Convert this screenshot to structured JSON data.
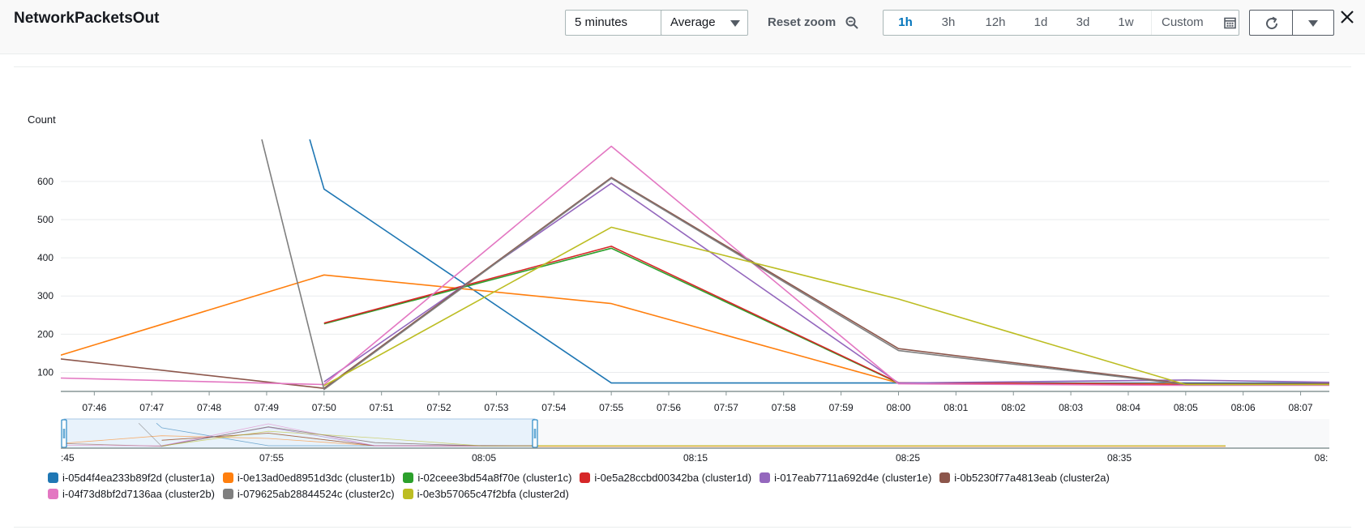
{
  "header": {
    "title": "NetworkPacketsOut",
    "period_label": "5 minutes",
    "stat_label": "Average",
    "reset_zoom_label": "Reset zoom",
    "ranges": [
      "1h",
      "3h",
      "12h",
      "1d",
      "3d",
      "1w"
    ],
    "active_range": "1h",
    "custom_label": "Custom",
    "icons": {
      "period_caret": "caret-down-icon",
      "stat_caret": "caret-down-icon",
      "zoom": "zoom-out-icon",
      "calendar": "calendar-icon",
      "refresh": "refresh-icon",
      "refresh_options": "caret-down-icon",
      "close": "close-icon"
    }
  },
  "chart_data": {
    "type": "line",
    "title": "",
    "ylabel": "Count",
    "xlabel": "",
    "ylim": [
      50,
      710
    ],
    "yticks": [
      100,
      200,
      300,
      400,
      500,
      600
    ],
    "xticks": [
      "07:46",
      "07:47",
      "07:48",
      "07:49",
      "07:50",
      "07:51",
      "07:52",
      "07:53",
      "07:54",
      "07:55",
      "07:56",
      "07:57",
      "07:58",
      "07:59",
      "08:00",
      "08:01",
      "08:02",
      "08:03",
      "08:04",
      "08:05",
      "08:06",
      "08:07"
    ],
    "xlim": [
      "07:45:25",
      "08:07:30"
    ],
    "grid": true,
    "legend_position": "bottom",
    "series": [
      {
        "name": "i-05d4f4ea233b89f2d (cluster1a)",
        "color": "#1f77b4",
        "points": [
          [
            "07:49:45",
            710
          ],
          [
            "07:50",
            580
          ],
          [
            "07:55",
            72
          ],
          [
            "08:00",
            72
          ],
          [
            "08:05",
            72
          ],
          [
            "08:07:30",
            72
          ]
        ]
      },
      {
        "name": "i-0e13ad0ed8951d3dc (cluster1b)",
        "color": "#ff7f0e",
        "points": [
          [
            "07:45:25",
            145
          ],
          [
            "07:50",
            355
          ],
          [
            "07:55",
            280
          ],
          [
            "08:00",
            72
          ],
          [
            "08:05",
            70
          ],
          [
            "08:07:30",
            70
          ]
        ]
      },
      {
        "name": "i-02ceee3bd54a8f70e (cluster1c)",
        "color": "#2ca02c",
        "points": [
          [
            "07:50",
            227
          ],
          [
            "07:55",
            425
          ],
          [
            "08:00",
            72
          ],
          [
            "08:05",
            68
          ],
          [
            "08:07:30",
            68
          ]
        ]
      },
      {
        "name": "i-0e5a28ccbd00342ba (cluster1d)",
        "color": "#d62728",
        "points": [
          [
            "07:50",
            229
          ],
          [
            "07:55",
            430
          ],
          [
            "08:00",
            73
          ],
          [
            "08:05",
            68
          ],
          [
            "08:07:30",
            68
          ]
        ]
      },
      {
        "name": "i-017eab7711a692d4e (cluster1e)",
        "color": "#9467bd",
        "points": [
          [
            "07:50",
            75
          ],
          [
            "07:55",
            595
          ],
          [
            "08:00",
            72
          ],
          [
            "08:05",
            80
          ],
          [
            "08:07:30",
            74
          ]
        ]
      },
      {
        "name": "i-0b5230f77a4813eab (cluster2a)",
        "color": "#8c564b",
        "points": [
          [
            "07:45:25",
            135
          ],
          [
            "07:50",
            58
          ],
          [
            "07:55",
            610
          ],
          [
            "08:00",
            162
          ],
          [
            "08:05",
            70
          ],
          [
            "08:07:30",
            70
          ]
        ]
      },
      {
        "name": "i-04f73d8bf2d7136aa (cluster2b)",
        "color": "#e377c2",
        "points": [
          [
            "07:45:25",
            85
          ],
          [
            "07:50",
            68
          ],
          [
            "07:55",
            692
          ],
          [
            "08:00",
            70
          ],
          [
            "08:05",
            66
          ],
          [
            "08:07:30",
            66
          ]
        ]
      },
      {
        "name": "i-079625ab28844524c (cluster2c)",
        "color": "#7f7f7f",
        "points": [
          [
            "07:48:55",
            710
          ],
          [
            "07:50",
            55
          ],
          [
            "07:55",
            608
          ],
          [
            "08:00",
            157
          ],
          [
            "08:05",
            68
          ],
          [
            "08:07:30",
            68
          ]
        ]
      },
      {
        "name": "i-0e3b57065c47f2bfa (cluster2d)",
        "color": "#bcbd22",
        "points": [
          [
            "07:50",
            65
          ],
          [
            "07:55",
            480
          ],
          [
            "08:00",
            292
          ],
          [
            "08:05",
            68
          ],
          [
            "08:07:30",
            68
          ]
        ]
      }
    ],
    "navigator": {
      "ticks": [
        ":45",
        "07:55",
        "08:05",
        "08:15",
        "08:25",
        "08:35",
        "08:"
      ]
    }
  }
}
